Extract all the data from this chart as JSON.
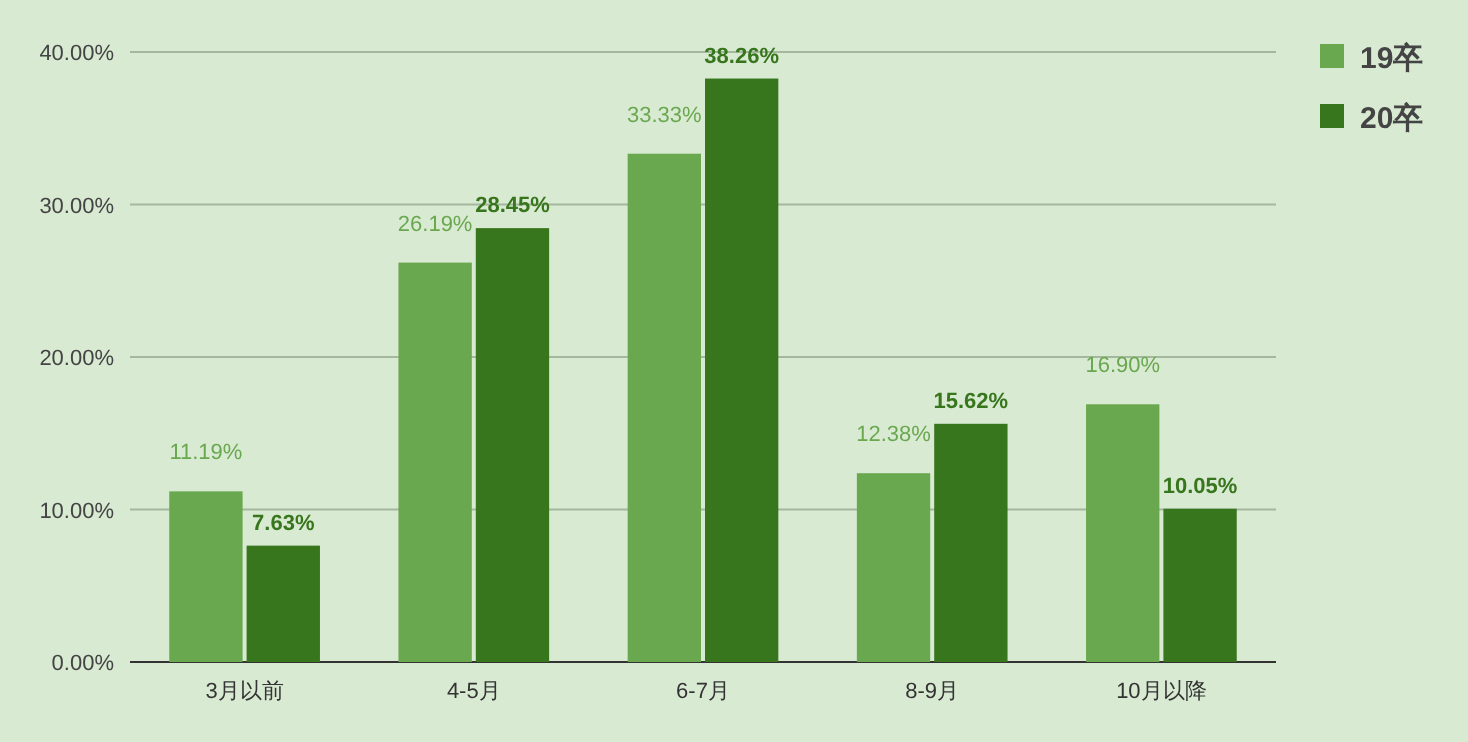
{
  "chart_data": {
    "type": "bar",
    "categories": [
      "3月以前",
      "4-5月",
      "6-7月",
      "8-9月",
      "10月以降"
    ],
    "series": [
      {
        "name": "19卒",
        "color": "#6aa84f",
        "values": [
          11.19,
          26.19,
          33.33,
          12.38,
          16.9
        ],
        "value_labels": [
          "11.19%",
          "26.19%",
          "33.33%",
          "12.38%",
          "16.90%"
        ]
      },
      {
        "name": "20卒",
        "color": "#38761d",
        "values": [
          7.63,
          28.45,
          38.26,
          15.62,
          10.05
        ],
        "value_labels": [
          "7.63%",
          "28.45%",
          "38.26%",
          "15.62%",
          "10.05%"
        ]
      }
    ],
    "ylim": [
      0,
      40
    ],
    "yticks": [
      {
        "value": 0,
        "label": "0.00%"
      },
      {
        "value": 10,
        "label": "10.00%"
      },
      {
        "value": 20,
        "label": "20.00%"
      },
      {
        "value": 30,
        "label": "30.00%"
      },
      {
        "value": 40,
        "label": "40.00%"
      }
    ],
    "grid": "y",
    "legend": "right"
  }
}
